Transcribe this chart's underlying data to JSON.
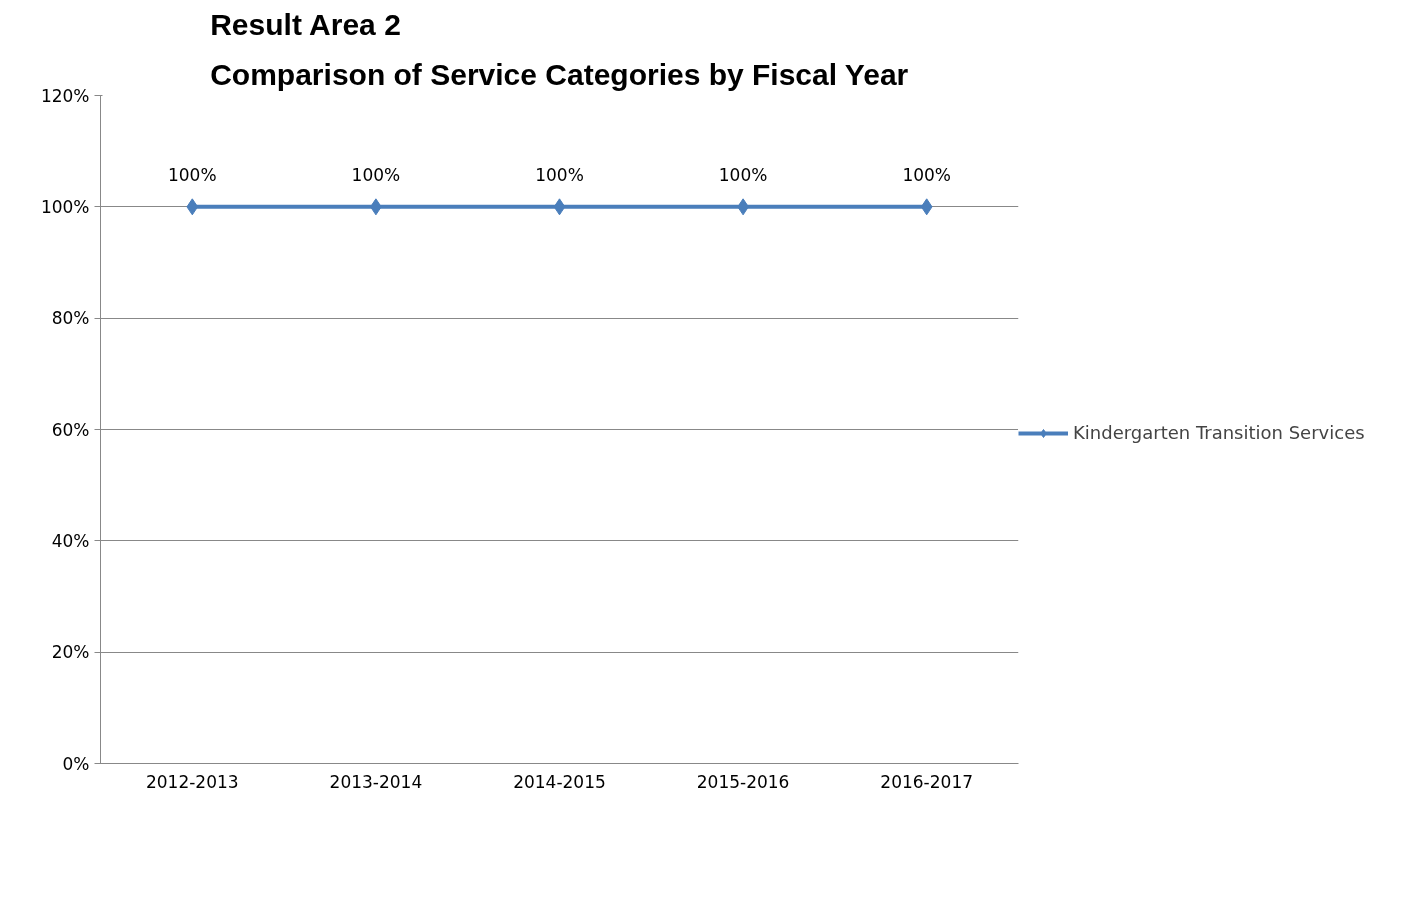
{
  "chart_data": {
    "type": "line",
    "title": "Result Area 2\nComparison of Service Categories by Fiscal Year",
    "categories": [
      "2012-2013",
      "2013-2014",
      "2014-2015",
      "2015-2016",
      "2016-2017"
    ],
    "series": [
      {
        "name": "Kindergarten Transition Services",
        "color": "#4a7ebb",
        "values": [
          100,
          100,
          100,
          100,
          100
        ],
        "value_labels": [
          "100%",
          "100%",
          "100%",
          "100%",
          "100%"
        ]
      }
    ],
    "ylim": [
      0,
      120
    ],
    "yticks": [
      {
        "value": 0,
        "label": "0%"
      },
      {
        "value": 20,
        "label": "20%"
      },
      {
        "value": 40,
        "label": "40%"
      },
      {
        "value": 60,
        "label": "60%"
      },
      {
        "value": 80,
        "label": "80%"
      },
      {
        "value": 100,
        "label": "100%"
      },
      {
        "value": 120,
        "label": "120%"
      }
    ],
    "grid": "y",
    "legend": "right",
    "marker": "diamond",
    "line_style": "solid"
  }
}
